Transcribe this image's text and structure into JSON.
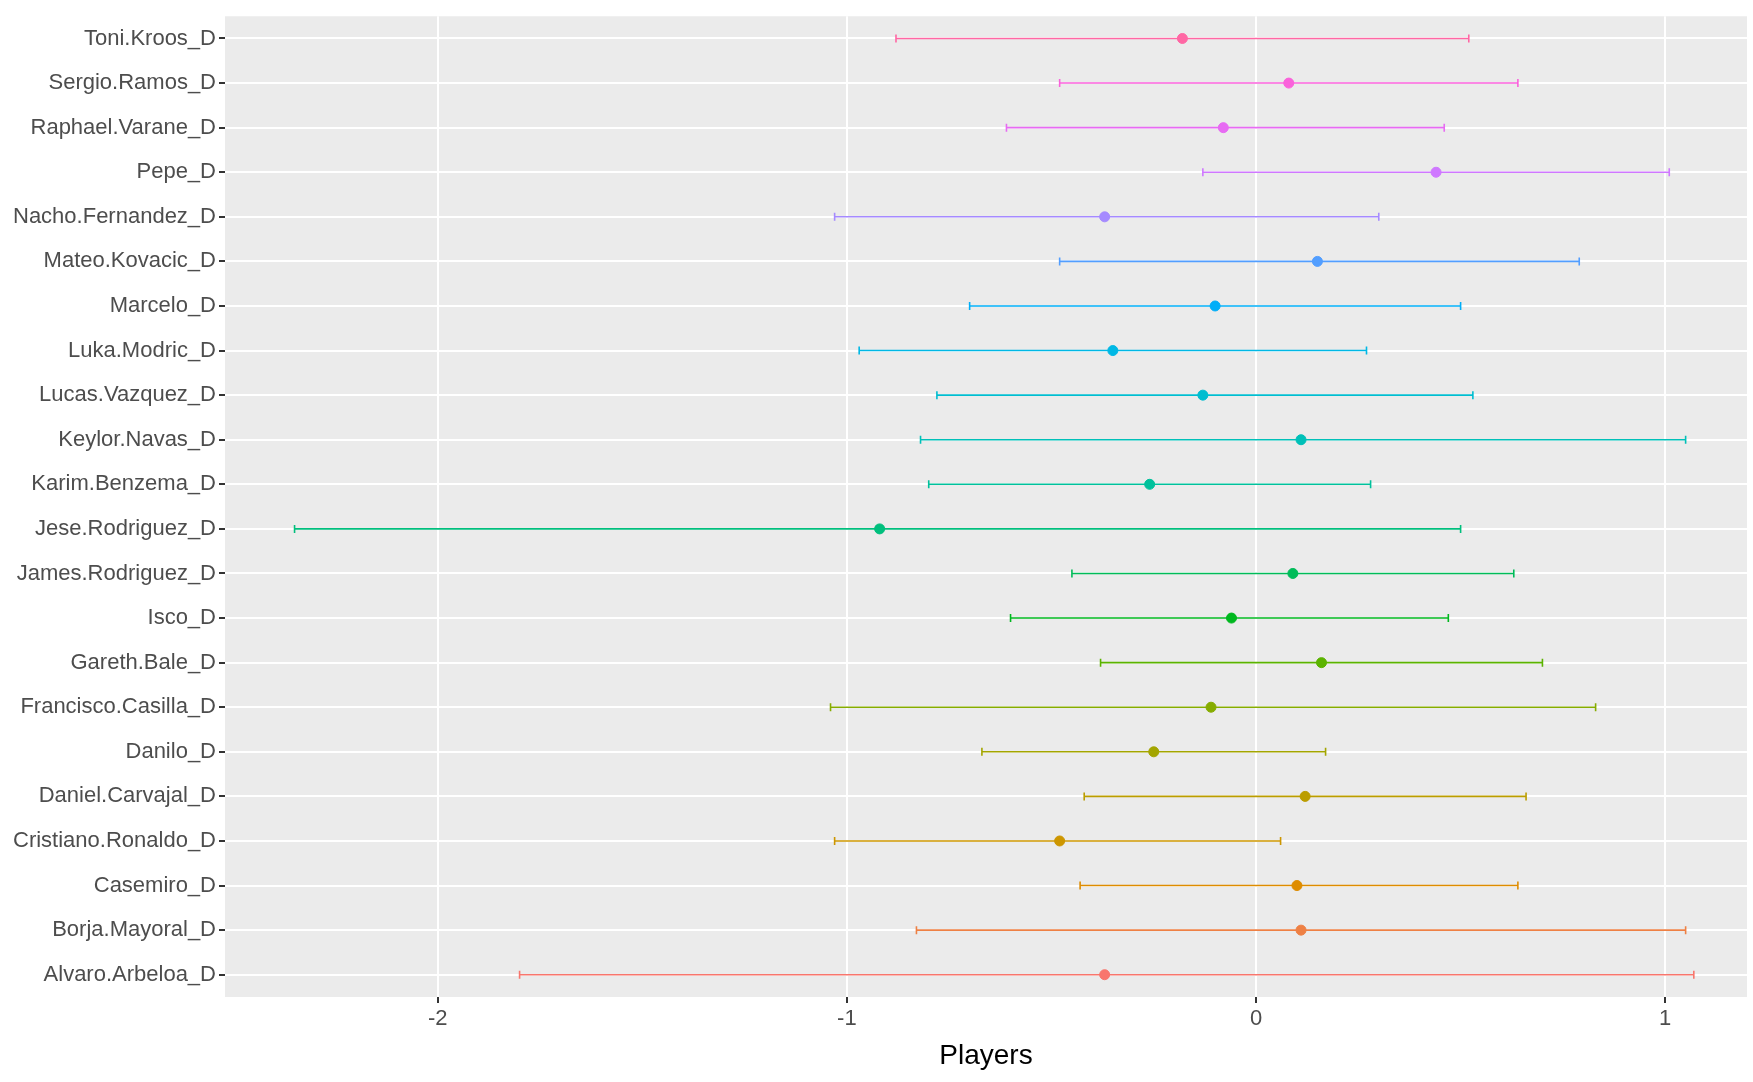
{
  "chart_data": {
    "type": "scatter",
    "orientation": "horizontal",
    "xlabel": "Players",
    "marker": "circle",
    "grid": true,
    "legend": false,
    "categories": [
      "Toni.Kroos_D",
      "Sergio.Ramos_D",
      "Raphael.Varane_D",
      "Pepe_D",
      "Nacho.Fernandez_D",
      "Mateo.Kovacic_D",
      "Marcelo_D",
      "Luka.Modric_D",
      "Lucas.Vazquez_D",
      "Keylor.Navas_D",
      "Karim.Benzema_D",
      "Jese.Rodriguez_D",
      "James.Rodriguez_D",
      "Isco_D",
      "Gareth.Bale_D",
      "Francisco.Casilla_D",
      "Danilo_D",
      "Daniel.Carvajal_D",
      "Cristiano.Ronaldo_D",
      "Casemiro_D",
      "Borja.Mayoral_D",
      "Alvaro.Arbeloa_D"
    ],
    "values": [
      -0.18,
      0.08,
      -0.08,
      0.44,
      -0.37,
      0.15,
      -0.1,
      -0.35,
      -0.13,
      0.11,
      -0.26,
      -0.92,
      0.09,
      -0.06,
      0.16,
      -0.11,
      -0.25,
      0.12,
      -0.48,
      0.1,
      0.11,
      -0.37
    ],
    "errors": [
      [
        -0.88,
        0.52
      ],
      [
        -0.48,
        0.64
      ],
      [
        -0.61,
        0.46
      ],
      [
        -0.13,
        1.01
      ],
      [
        -1.03,
        0.3
      ],
      [
        -0.48,
        0.79
      ],
      [
        -0.7,
        0.5
      ],
      [
        -0.97,
        0.27
      ],
      [
        -0.78,
        0.53
      ],
      [
        -0.82,
        1.05
      ],
      [
        -0.8,
        0.28
      ],
      [
        -2.35,
        0.5
      ],
      [
        -0.45,
        0.63
      ],
      [
        -0.6,
        0.47
      ],
      [
        -0.38,
        0.7
      ],
      [
        -1.04,
        0.83
      ],
      [
        -0.67,
        0.17
      ],
      [
        -0.42,
        0.66
      ],
      [
        -1.03,
        0.06
      ],
      [
        -0.43,
        0.64
      ],
      [
        -0.83,
        1.05
      ],
      [
        -1.8,
        1.07
      ]
    ],
    "colors": [
      "#FF67A4",
      "#FA62DB",
      "#E76BF3",
      "#CF78FF",
      "#A58AFF",
      "#529EFF",
      "#00AEF8",
      "#00B8E5",
      "#00BDD0",
      "#00C0B8",
      "#00C19C",
      "#00BF7D",
      "#00BC59",
      "#00B81F",
      "#5BB300",
      "#86AC00",
      "#A3A500",
      "#BB9D00",
      "#CD9600",
      "#DE8C00",
      "#EE8044",
      "#F8766D"
    ],
    "xlim": [
      -2.52,
      1.2
    ],
    "xticks": [
      -2,
      -1,
      0,
      1
    ]
  }
}
